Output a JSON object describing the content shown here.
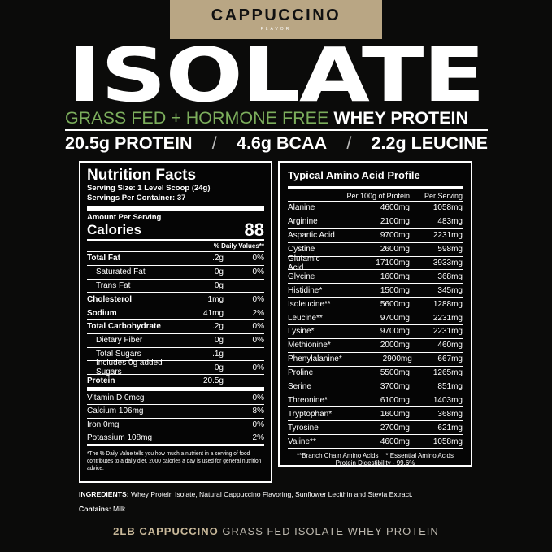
{
  "header": {
    "flavor": "CAPPUCCINO",
    "flavor_label": "FLAVOR",
    "title": "ISOLATE",
    "subtitle_green": "GRASS FED + HORMONE FREE",
    "subtitle_white": "WHEY PROTEIN",
    "stats": [
      "20.5g PROTEIN",
      "4.6g BCAA",
      "2.2g LEUCINE"
    ],
    "separator": "/"
  },
  "colors": {
    "flavor_band": "#b9a684",
    "green": "#7cae5c",
    "background": "#0b0b0a"
  },
  "nutrition": {
    "title": "Nutrition Facts",
    "serving_size": "Serving Size: 1 Level Scoop (24g)",
    "servings": "Servings Per Container: 37",
    "amount_label": "Amount Per Serving",
    "calories_label": "Calories",
    "calories": "88",
    "dv_header": "% Daily Values**",
    "rows": [
      {
        "label": "Total Fat",
        "amount": ".2g",
        "dv": "0%"
      },
      {
        "label": "Saturated Fat",
        "amount": "0g",
        "dv": "0%"
      },
      {
        "label": "Trans Fat",
        "amount": "0g",
        "dv": ""
      },
      {
        "label": "Cholesterol",
        "amount": "1mg",
        "dv": "0%"
      },
      {
        "label": "Sodium",
        "amount": "41mg",
        "dv": "2%"
      },
      {
        "label": "Total Carbohydrate",
        "amount": ".2g",
        "dv": "0%"
      },
      {
        "label": "Dietary Fiber",
        "amount": "0g",
        "dv": "0%"
      },
      {
        "label": "Total Sugars",
        "amount": ".1g",
        "dv": ""
      },
      {
        "label": "Includes 0g added Sugars",
        "amount": "0g",
        "dv": "0%"
      },
      {
        "label": "Protein",
        "amount": "20.5g",
        "dv": ""
      },
      {
        "label": "Vitamin D 0mcg",
        "amount": "",
        "dv": "0%"
      },
      {
        "label": "Calcium 106mg",
        "amount": "",
        "dv": "8%"
      },
      {
        "label": "Iron 0mg",
        "amount": "",
        "dv": "0%"
      },
      {
        "label": "Potassium 108mg",
        "amount": "",
        "dv": "2%"
      }
    ],
    "footnote": "*The % Daily Value tells you how much a nutrient in a serving of food contributes to a daily diet. 2000 calories a day is used for general nutrition advice."
  },
  "amino": {
    "title": "Typical Amino Acid Profile",
    "col1": "Per 100g of Protein",
    "col2": "Per Serving",
    "rows": [
      {
        "name": "Alanine",
        "per100": "4600mg",
        "serving": "1058mg"
      },
      {
        "name": "Arginine",
        "per100": "2100mg",
        "serving": "483mg"
      },
      {
        "name": "Aspartic Acid",
        "per100": "9700mg",
        "serving": "2231mg"
      },
      {
        "name": "Cystine",
        "per100": "2600mg",
        "serving": "598mg"
      },
      {
        "name": "Glutamic Acid",
        "per100": "17100mg",
        "serving": "3933mg"
      },
      {
        "name": "Glycine",
        "per100": "1600mg",
        "serving": "368mg"
      },
      {
        "name": "Histidine*",
        "per100": "1500mg",
        "serving": "345mg"
      },
      {
        "name": "Isoleucine**",
        "per100": "5600mg",
        "serving": "1288mg"
      },
      {
        "name": "Leucine**",
        "per100": "9700mg",
        "serving": "2231mg"
      },
      {
        "name": "Lysine*",
        "per100": "9700mg",
        "serving": "2231mg"
      },
      {
        "name": "Methionine*",
        "per100": "2000mg",
        "serving": "460mg"
      },
      {
        "name": "Phenylalanine*",
        "per100": "2900mg",
        "serving": "667mg"
      },
      {
        "name": "Proline",
        "per100": "5500mg",
        "serving": "1265mg"
      },
      {
        "name": "Serine",
        "per100": "3700mg",
        "serving": "851mg"
      },
      {
        "name": "Threonine*",
        "per100": "6100mg",
        "serving": "1403mg"
      },
      {
        "name": "Tryptophan*",
        "per100": "1600mg",
        "serving": "368mg"
      },
      {
        "name": "Tyrosine",
        "per100": "2700mg",
        "serving": "621mg"
      },
      {
        "name": "Valine**",
        "per100": "4600mg",
        "serving": "1058mg"
      }
    ],
    "note1": "**Branch Chain Amino Acids    * Essential Amino Acids",
    "note2": "Protein Digestibility - 99.6%"
  },
  "ingredients": {
    "label": "INGREDIENTS:",
    "text": " Whey Protein Isolate, Natural Cappuccino Flavoring, Sunflower Lecithin and Stevia Extract.",
    "contains_label": "Contains:",
    "contains": " Milk"
  },
  "footer": {
    "bold": "2LB CAPPUCCINO",
    "rest": " GRASS FED ISOLATE WHEY PROTEIN"
  }
}
